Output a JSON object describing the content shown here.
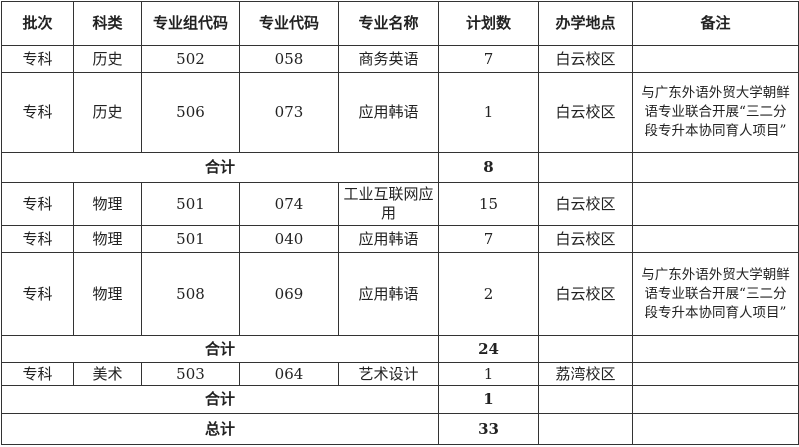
{
  "headers": [
    "批次",
    "科类",
    "专业组代码",
    "专业代码",
    "专业名称",
    "计划数",
    "办学地点",
    "备注"
  ],
  "rows": [
    {
      "type": "data",
      "cells": [
        "专科",
        "历史",
        "502",
        "058",
        "商务英语",
        "7",
        "白云校区",
        ""
      ]
    },
    {
      "type": "data",
      "cells": [
        "专科",
        "历史",
        "506",
        "073",
        "应用韩语",
        "1",
        "白云校区",
        "与广东外语外贸大学朝鲜语专业联合开展“三二分段专升本协同育人项目”"
      ]
    },
    {
      "type": "subtotal",
      "label": "合计",
      "value": "8"
    },
    {
      "type": "data",
      "cells": [
        "专科",
        "物理",
        "501",
        "074",
        "工业互联网应用",
        "15",
        "白云校区",
        ""
      ]
    },
    {
      "type": "data",
      "cells": [
        "专科",
        "物理",
        "501",
        "040",
        "应用韩语",
        "7",
        "白云校区",
        ""
      ]
    },
    {
      "type": "data",
      "cells": [
        "专科",
        "物理",
        "508",
        "069",
        "应用韩语",
        "2",
        "白云校区",
        "与广东外语外贸大学朝鲜语专业联合开展“三二分段专升本协同育人项目”"
      ]
    },
    {
      "type": "subtotal",
      "label": "合计",
      "value": "24"
    },
    {
      "type": "data",
      "cells": [
        "专科",
        "美术",
        "503",
        "064",
        "艺术设计",
        "1",
        "荔湾校区",
        ""
      ]
    },
    {
      "type": "subtotal",
      "label": "合计",
      "value": "1"
    },
    {
      "type": "subtotal",
      "label": "总计",
      "value": "33"
    }
  ]
}
